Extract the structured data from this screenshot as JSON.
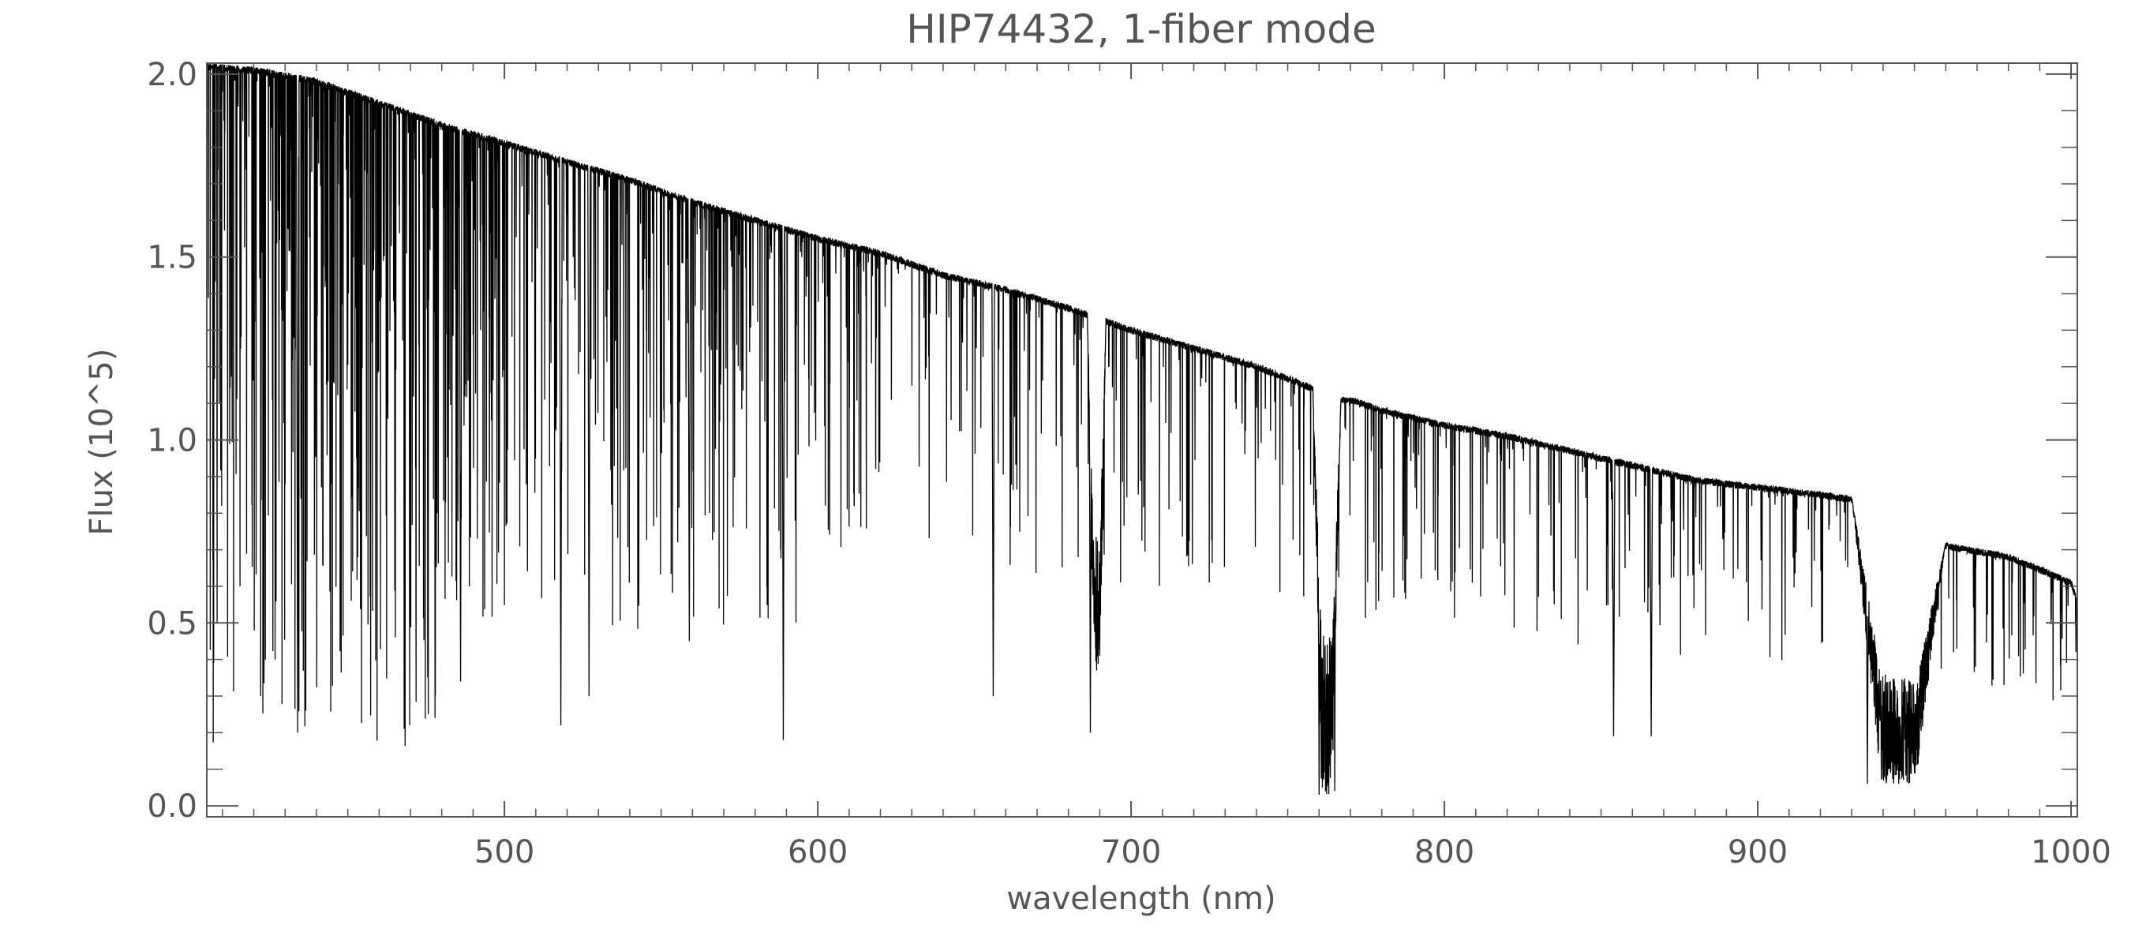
{
  "chart_data": {
    "type": "line",
    "title": "HIP74432, 1-fiber mode",
    "xlabel": "wavelength (nm)",
    "ylabel": "Flux (10^5)",
    "xlim": [
      405,
      1002
    ],
    "ylim": [
      -0.03,
      2.03
    ],
    "x_ticks": [
      500,
      600,
      700,
      800,
      900,
      1000
    ],
    "x_tick_labels": [
      "500",
      "600",
      "700",
      "800",
      "900",
      "1000"
    ],
    "y_ticks": [
      0.0,
      0.5,
      1.0,
      1.5,
      2.0
    ],
    "y_tick_labels": [
      "0.0",
      "0.5",
      "1.0",
      "1.5",
      "2.0"
    ],
    "grid": false,
    "line_color": "#000000",
    "series": [
      {
        "continuum": {
          "x": [
            405,
            420,
            440,
            460,
            480,
            500,
            520,
            540,
            560,
            580,
            600,
            620,
            640,
            660,
            680,
            700,
            720,
            740,
            758,
            762,
            770,
            780,
            800,
            820,
            840,
            860,
            880,
            900,
            920,
            935,
            960,
            980,
            1000,
            1002
          ],
          "y": [
            2.03,
            2.02,
            1.99,
            1.93,
            1.87,
            1.82,
            1.77,
            1.72,
            1.66,
            1.61,
            1.56,
            1.52,
            1.46,
            1.42,
            1.37,
            1.31,
            1.26,
            1.21,
            1.15,
            1.12,
            1.12,
            1.09,
            1.05,
            1.02,
            0.98,
            0.94,
            0.9,
            0.88,
            0.86,
            0.84,
            0.72,
            0.69,
            0.62,
            0.57
          ]
        },
        "absorption_lines": [
          {
            "wavelength": 434,
            "depth_to": 0.2
          },
          {
            "wavelength": 486,
            "depth_to": 0.34
          },
          {
            "wavelength": 518,
            "depth_to": 0.22
          },
          {
            "wavelength": 527,
            "depth_to": 0.3
          },
          {
            "wavelength": 559,
            "depth_to": 0.45
          },
          {
            "wavelength": 589,
            "depth_to": 0.18
          },
          {
            "wavelength": 656,
            "depth_to": 0.3
          },
          {
            "wavelength": 687,
            "depth_to": 0.2
          },
          {
            "wavelength": 689,
            "depth_to": 0.37
          },
          {
            "wavelength": 760,
            "depth_to": 0.03
          },
          {
            "wavelength": 765,
            "depth_to": 0.04
          },
          {
            "wavelength": 854,
            "depth_to": 0.19
          },
          {
            "wavelength": 866,
            "depth_to": 0.19
          },
          {
            "wavelength": 935,
            "depth_to": 0.06
          },
          {
            "wavelength": 945,
            "depth_to": 0.06
          }
        ],
        "absorption_bands": [
          {
            "start": 686,
            "end": 692,
            "floor": 0.37
          },
          {
            "start": 758,
            "end": 767,
            "floor": 0.03
          },
          {
            "start": 930,
            "end": 960,
            "floor": 0.06
          }
        ]
      }
    ]
  }
}
